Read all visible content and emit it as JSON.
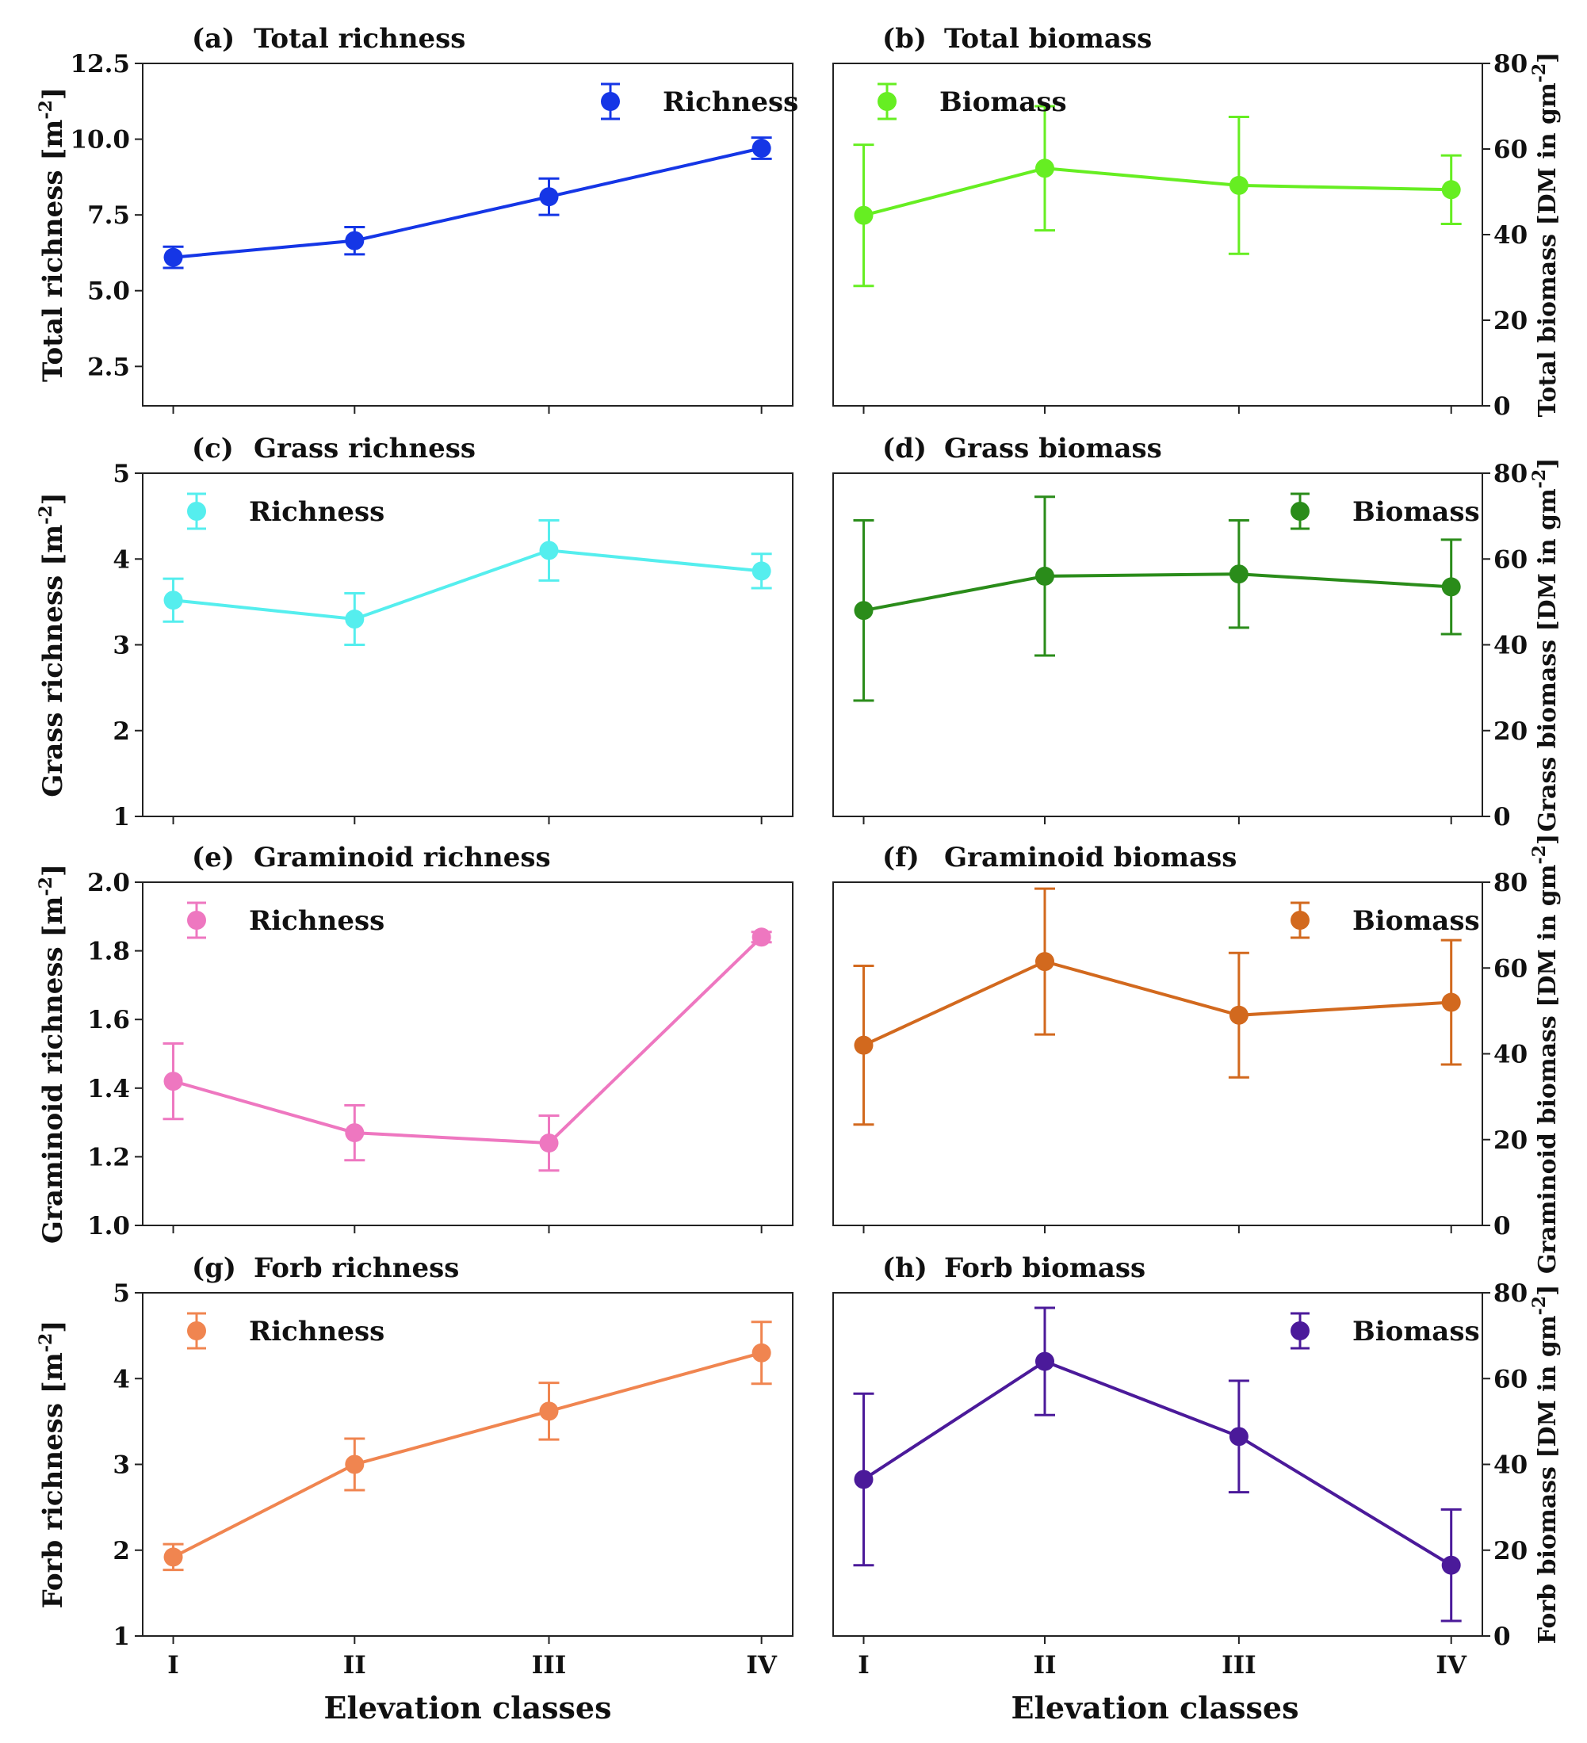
{
  "x_axis_label": "Elevation classes",
  "categories": [
    "I",
    "II",
    "III",
    "IV"
  ],
  "chart_data": [
    {
      "id": "a",
      "type": "line",
      "panel_label": "(a)",
      "title": "Total richness",
      "ylabel": "Total richness [m",
      "ylabel_sup": "-2",
      "ylabel_end": "]",
      "ylim": [
        1.2,
        12.5
      ],
      "yticks": [
        2.5,
        5.0,
        7.5,
        10.0,
        12.5
      ],
      "tick_decimals": 1,
      "side": "left",
      "color": "#1536e6",
      "legend": "Richness",
      "legend_pos": "top-right",
      "categories": [
        "I",
        "II",
        "III",
        "IV"
      ],
      "values": [
        6.1,
        6.65,
        8.1,
        9.7
      ],
      "err": [
        0.35,
        0.45,
        0.6,
        0.35
      ]
    },
    {
      "id": "b",
      "type": "line",
      "panel_label": "(b)",
      "title": "Total biomass",
      "ylabel": "Total biomass [DM in gm",
      "ylabel_sup": "-2",
      "ylabel_end": "]",
      "ylim": [
        0,
        80
      ],
      "yticks": [
        0,
        20,
        40,
        60,
        80
      ],
      "tick_decimals": 0,
      "side": "right",
      "color": "#66ee22",
      "legend": "Biomass",
      "legend_pos": "top-left",
      "categories": [
        "I",
        "II",
        "III",
        "IV"
      ],
      "values": [
        44.5,
        55.5,
        51.5,
        50.5
      ],
      "err": [
        16.5,
        14.5,
        16.0,
        8.0
      ]
    },
    {
      "id": "c",
      "type": "line",
      "panel_label": "(c)",
      "title": "Grass richness",
      "ylabel": "Grass richness [m",
      "ylabel_sup": "-2",
      "ylabel_end": "]",
      "ylim": [
        1,
        5
      ],
      "yticks": [
        1,
        2,
        3,
        4,
        5
      ],
      "tick_decimals": 0,
      "side": "left",
      "color": "#55eeee",
      "legend": "Richness",
      "legend_pos": "top-left",
      "categories": [
        "I",
        "II",
        "III",
        "IV"
      ],
      "values": [
        3.52,
        3.3,
        4.1,
        3.86
      ],
      "err": [
        0.25,
        0.3,
        0.35,
        0.2
      ]
    },
    {
      "id": "d",
      "type": "line",
      "panel_label": "(d)",
      "title": "Grass biomass",
      "ylabel": "Grass biomass [DM in gm",
      "ylabel_sup": "-2",
      "ylabel_end": "]",
      "ylim": [
        0,
        80
      ],
      "yticks": [
        0,
        20,
        40,
        60,
        80
      ],
      "tick_decimals": 0,
      "side": "right",
      "color": "#2a8c1a",
      "legend": "Biomass",
      "legend_pos": "top-right",
      "categories": [
        "I",
        "II",
        "III",
        "IV"
      ],
      "values": [
        48.0,
        56.0,
        56.5,
        53.5
      ],
      "err": [
        21.0,
        18.5,
        12.5,
        11.0
      ]
    },
    {
      "id": "e",
      "type": "line",
      "panel_label": "(e)",
      "title": "Graminoid richness",
      "ylabel": "Graminoid richness [m",
      "ylabel_sup": "-2",
      "ylabel_end": "]",
      "ylim": [
        1.0,
        2.0
      ],
      "yticks": [
        1.0,
        1.2,
        1.4,
        1.6,
        1.8,
        2.0
      ],
      "tick_decimals": 1,
      "side": "left",
      "color": "#ee77c0",
      "legend": "Richness",
      "legend_pos": "top-left",
      "categories": [
        "I",
        "II",
        "III",
        "IV"
      ],
      "values": [
        1.42,
        1.27,
        1.24,
        1.84
      ],
      "err": [
        0.11,
        0.08,
        0.08,
        0.015
      ]
    },
    {
      "id": "f",
      "type": "line",
      "panel_label": "(f)",
      "title": "Graminoid biomass",
      "ylabel": "Graminoid biomass [DM in gm",
      "ylabel_sup": "-2",
      "ylabel_end": "]",
      "ylim": [
        0,
        80
      ],
      "yticks": [
        0,
        20,
        40,
        60,
        80
      ],
      "tick_decimals": 0,
      "side": "right",
      "color": "#d2691e",
      "legend": "Biomass",
      "legend_pos": "top-right",
      "categories": [
        "I",
        "II",
        "III",
        "IV"
      ],
      "values": [
        42.0,
        61.5,
        49.0,
        52.0
      ],
      "err": [
        18.5,
        17.0,
        14.5,
        14.5
      ]
    },
    {
      "id": "g",
      "type": "line",
      "panel_label": "(g)",
      "title": "Forb richness",
      "ylabel": "Forb richness [m",
      "ylabel_sup": "-2",
      "ylabel_end": "]",
      "ylim": [
        1,
        5
      ],
      "yticks": [
        1,
        2,
        3,
        4,
        5
      ],
      "tick_decimals": 0,
      "side": "left",
      "color": "#f08550",
      "legend": "Richness",
      "legend_pos": "top-left",
      "categories": [
        "I",
        "II",
        "III",
        "IV"
      ],
      "values": [
        1.92,
        3.0,
        3.62,
        4.3
      ],
      "err": [
        0.15,
        0.3,
        0.33,
        0.36
      ]
    },
    {
      "id": "h",
      "type": "line",
      "panel_label": "(h)",
      "title": "Forb biomass",
      "ylabel": "Forb biomass [DM in gm",
      "ylabel_sup": "-2",
      "ylabel_end": "]",
      "ylim": [
        0,
        80
      ],
      "yticks": [
        0,
        20,
        40,
        60,
        80
      ],
      "tick_decimals": 0,
      "side": "right",
      "color": "#4b1a9a",
      "legend": "Biomass",
      "legend_pos": "top-right",
      "categories": [
        "I",
        "II",
        "III",
        "IV"
      ],
      "values": [
        36.5,
        64.0,
        46.5,
        16.5
      ],
      "err": [
        20.0,
        12.5,
        13.0,
        13.0
      ]
    }
  ]
}
